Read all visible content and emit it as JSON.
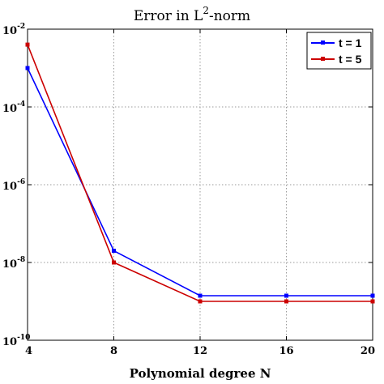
{
  "chart_data": {
    "type": "line",
    "title": "Error in L2-norm",
    "title_parts": {
      "base": "Error in L",
      "sup": "2",
      "rest": "-norm"
    },
    "xlabel": "Polynomial degree N",
    "ylabel": "",
    "y_scale": "log",
    "xlim": [
      4,
      20
    ],
    "ylim": [
      1e-10,
      0.01
    ],
    "grid": true,
    "legend_position": "top-right",
    "x_ticks": [
      {
        "value": 4,
        "label": "4"
      },
      {
        "value": 8,
        "label": "8"
      },
      {
        "value": 12,
        "label": "12"
      },
      {
        "value": 16,
        "label": "16"
      },
      {
        "value": 20,
        "label": "20"
      }
    ],
    "y_ticks": [
      {
        "value": 1e-10,
        "base": "10",
        "exp": "-10"
      },
      {
        "value": 1e-08,
        "base": "10",
        "exp": "-8"
      },
      {
        "value": 1e-06,
        "base": "10",
        "exp": "-6"
      },
      {
        "value": 0.0001,
        "base": "10",
        "exp": "-4"
      },
      {
        "value": 0.01,
        "base": "10",
        "exp": "-2"
      }
    ],
    "x": [
      4,
      8,
      12,
      16,
      20
    ],
    "series": [
      {
        "name": "t = 1",
        "color": "#0000ff",
        "values": [
          0.001,
          2e-08,
          1.4e-09,
          1.4e-09,
          1.4e-09
        ]
      },
      {
        "name": "t = 5",
        "color": "#cc0000",
        "values": [
          0.004,
          1e-08,
          1e-09,
          1e-09,
          1e-09
        ]
      }
    ]
  }
}
